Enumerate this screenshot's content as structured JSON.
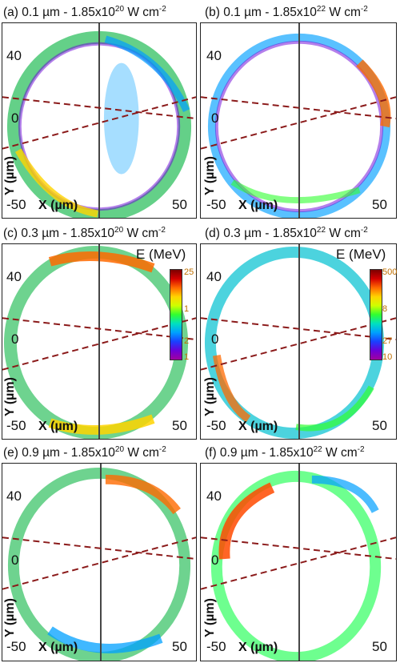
{
  "panels": [
    {
      "id": "a",
      "title": "(a) 0.1 µm - 1.85x10",
      "exp": "20",
      "unit": " W cm",
      "unit_exp": "-2"
    },
    {
      "id": "b",
      "title": "(b) 0.1 µm - 1.85x10",
      "exp": "22",
      "unit": " W cm",
      "unit_exp": "-2"
    },
    {
      "id": "c",
      "title": "(c) 0.3 µm - 1.85x10",
      "exp": "20",
      "unit": " W cm",
      "unit_exp": "-2"
    },
    {
      "id": "d",
      "title": "(d) 0.3 µm - 1.85x10",
      "exp": "22",
      "unit": " W cm",
      "unit_exp": "-2"
    },
    {
      "id": "e",
      "title": "(e) 0.9 µm - 1.85x10",
      "exp": "20",
      "unit": " W cm",
      "unit_exp": "-2"
    },
    {
      "id": "f",
      "title": "(f) 0.9 µm - 1.85x10",
      "exp": "22",
      "unit": " W cm",
      "unit_exp": "-2"
    }
  ],
  "axes": {
    "y_ticks": [
      "40",
      "0",
      "-50"
    ],
    "x_tick_right": "50",
    "xlabel": "X (µm)",
    "ylabel": "Y (µm)"
  },
  "colorbars": [
    {
      "title": "E (MeV)",
      "max": "25",
      "min": "1",
      "mid1": "1",
      "mid2": "2"
    },
    {
      "title": "E (MeV)",
      "max": "500",
      "min": "10",
      "mid1": "8",
      "mid2": "27"
    }
  ],
  "colors": {
    "arrow": "#8b1a1a",
    "frame": "#222222",
    "beam": "#444444"
  }
}
